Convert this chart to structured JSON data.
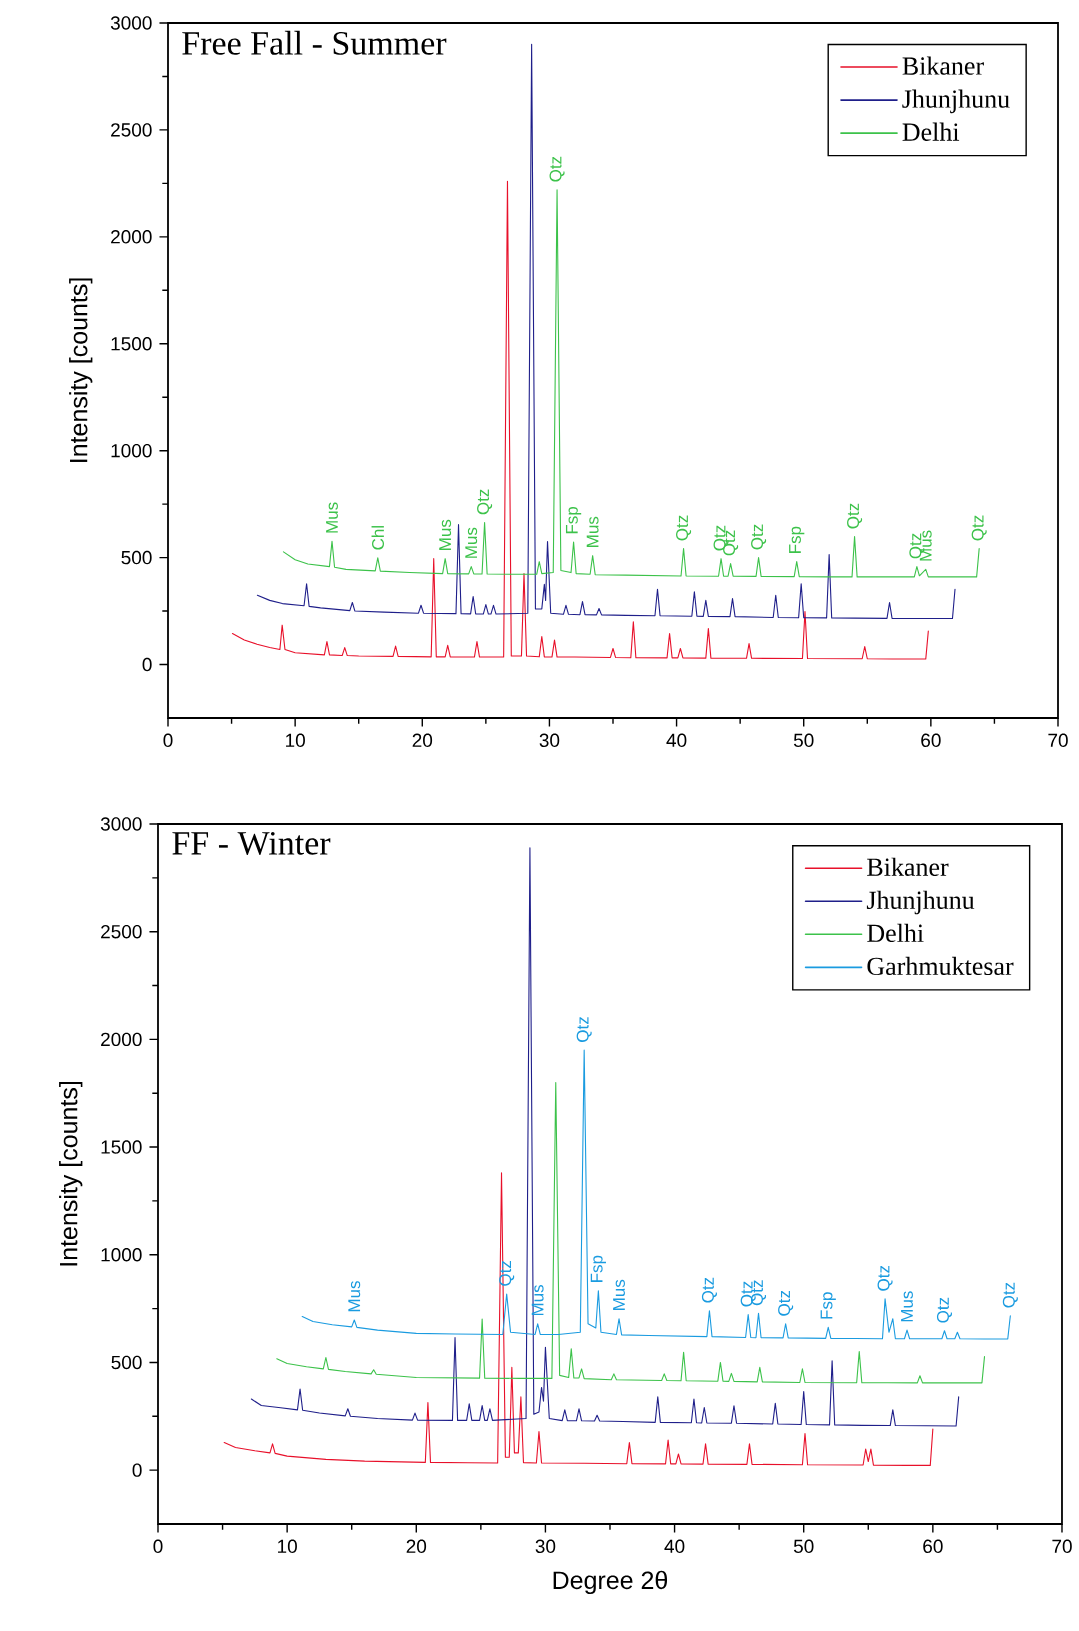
{
  "chart_data": [
    {
      "type": "line",
      "title": "Free Fall - Summer",
      "ylabel": "Intensity [counts]",
      "xlim": [
        0,
        70
      ],
      "xticks": [
        0,
        10,
        20,
        30,
        40,
        50,
        60,
        70
      ],
      "ylim": [
        -250,
        3000
      ],
      "yticks": [
        0,
        500,
        1000,
        1500,
        2000,
        2500,
        3000
      ],
      "legend": "top right",
      "series": [
        {
          "name": "Bikaner",
          "color": "#e8102a",
          "x": [
            5.07,
            6,
            7,
            8,
            8.8,
            8.98,
            9.2,
            10,
            12.3,
            12.5,
            12.7,
            13.7,
            13.9,
            14.1,
            15,
            17.7,
            17.9,
            18.1,
            20.7,
            20.9,
            21.1,
            21.8,
            22.0,
            22.2,
            24.1,
            24.3,
            24.5,
            26.4,
            26.7,
            27.0,
            27.8,
            28.0,
            28.2,
            29.2,
            29.4,
            29.6,
            30.2,
            30.4,
            30.6,
            32,
            34.8,
            35.0,
            35.2,
            36.4,
            36.6,
            36.8,
            39.25,
            39.45,
            39.65,
            40.1,
            40.3,
            40.5,
            42.3,
            42.5,
            42.7,
            45.5,
            45.7,
            45.9,
            49.9,
            50.1,
            50.3,
            54.6,
            54.8,
            55.0,
            57,
            59.6,
            59.8
          ],
          "values": [
            145,
            115,
            95,
            80,
            70,
            184,
            70,
            55,
            45,
            107,
            45,
            42,
            79,
            42,
            40,
            38,
            86,
            38,
            36,
            495,
            36,
            36,
            90,
            36,
            35,
            107,
            35,
            35,
            2260,
            40,
            40,
            425,
            40,
            36,
            131,
            36,
            35,
            114,
            35,
            35,
            33,
            75,
            33,
            32,
            200,
            32,
            31,
            145,
            31,
            31,
            75,
            31,
            30,
            168,
            30,
            29,
            98,
            29,
            28,
            248,
            28,
            27,
            84,
            27,
            26,
            26,
            156
          ]
        },
        {
          "name": "Jhunjhunu",
          "color": "#1f1f8a",
          "x": [
            7.03,
            8,
            9,
            10.7,
            10.9,
            11.1,
            12,
            14.3,
            14.5,
            14.7,
            17,
            19.7,
            19.9,
            20.1,
            22.65,
            22.85,
            23.05,
            23.8,
            24.0,
            24.2,
            24.8,
            25.0,
            25.2,
            25.4,
            25.6,
            25.8,
            28.3,
            28.6,
            28.9,
            29.4,
            29.6,
            29.7,
            29.85,
            30.1,
            31.1,
            31.3,
            31.5,
            32.4,
            32.6,
            32.8,
            33.7,
            33.9,
            34.1,
            36,
            38.3,
            38.5,
            38.7,
            41.2,
            41.4,
            41.6,
            42.1,
            42.3,
            42.5,
            44.2,
            44.4,
            44.6,
            47.6,
            47.8,
            48.0,
            49.6,
            49.8,
            50.0,
            51.8,
            52.0,
            52.2,
            54,
            56.55,
            56.75,
            56.95,
            59,
            61.7,
            61.9
          ],
          "values": [
            324,
            300,
            285,
            275,
            378,
            272,
            265,
            252,
            290,
            250,
            245,
            240,
            277,
            240,
            238,
            654,
            238,
            237,
            318,
            237,
            236,
            280,
            236,
            236,
            277,
            236,
            240,
            2900,
            260,
            260,
            375,
            300,
            575,
            240,
            235,
            277,
            235,
            233,
            294,
            233,
            232,
            262,
            232,
            230,
            228,
            352,
            228,
            226,
            340,
            226,
            225,
            300,
            225,
            224,
            308,
            224,
            220,
            324,
            220,
            219,
            378,
            219,
            218,
            514,
            218,
            217,
            216,
            290,
            216,
            215,
            215,
            352
          ]
        },
        {
          "name": "Delhi",
          "color": "#3cc24a",
          "x": [
            9.08,
            10,
            11,
            12.7,
            12.9,
            13.1,
            14,
            16.3,
            16.5,
            16.7,
            19,
            21.6,
            21.8,
            22.0,
            23.65,
            23.85,
            24.05,
            24.7,
            24.9,
            25.1,
            27,
            29.0,
            29.2,
            29.4,
            30.3,
            30.6,
            30.9,
            31.7,
            31.9,
            32.1,
            33.2,
            33.4,
            33.6,
            36,
            40.35,
            40.55,
            40.75,
            43.3,
            43.5,
            43.7,
            44.05,
            44.25,
            44.45,
            46.25,
            46.45,
            46.65,
            49.25,
            49.45,
            49.65,
            52,
            53.8,
            54.0,
            54.2,
            56,
            58.7,
            58.9,
            59.1,
            59.6,
            59.8,
            61,
            63.6,
            63.8
          ],
          "values": [
            527,
            490,
            470,
            458,
            576,
            455,
            445,
            438,
            499,
            437,
            430,
            425,
            495,
            425,
            424,
            458,
            424,
            423,
            664,
            423,
            422,
            422,
            481,
            425,
            430,
            2220,
            440,
            430,
            573,
            425,
            422,
            509,
            420,
            418,
            414,
            542,
            414,
            413,
            495,
            413,
            413,
            472,
            413,
            412,
            500,
            412,
            411,
            481,
            411,
            410,
            410,
            598,
            410,
            410,
            410,
            458,
            415,
            445,
            410,
            410,
            410,
            542
          ]
        }
      ],
      "annotations": [
        {
          "text": "Mus",
          "x": 12.9,
          "y": 576
        },
        {
          "text": "Chl",
          "x": 16.5,
          "y": 499
        },
        {
          "text": "Mus",
          "x": 21.8,
          "y": 495
        },
        {
          "text": "Mus",
          "x": 23.85,
          "y": 458
        },
        {
          "text": "Qtz",
          "x": 24.9,
          "y": 664
        },
        {
          "text": "Qtz",
          "x": 30.6,
          "y": 2220
        },
        {
          "text": "Fsp",
          "x": 31.9,
          "y": 573
        },
        {
          "text": "Mus",
          "x": 33.4,
          "y": 509
        },
        {
          "text": "Qtz",
          "x": 40.55,
          "y": 542
        },
        {
          "text": "Qtz",
          "x": 43.5,
          "y": 495
        },
        {
          "text": "Qtz",
          "x": 44.25,
          "y": 472
        },
        {
          "text": "Qtz",
          "x": 46.45,
          "y": 500
        },
        {
          "text": "Fsp",
          "x": 49.45,
          "y": 481
        },
        {
          "text": "Qtz",
          "x": 54.0,
          "y": 598
        },
        {
          "text": "Qtz",
          "x": 58.9,
          "y": 458
        },
        {
          "text": "Mus",
          "x": 59.6,
          "y": 445
        },
        {
          "text": "Qtz",
          "x": 63.8,
          "y": 542
        }
      ]
    },
    {
      "type": "line",
      "title": "FF - Winter",
      "xlabel": "Degree 2θ",
      "ylabel": "Intensity [counts]",
      "xlim": [
        0,
        70
      ],
      "xticks": [
        0,
        10,
        20,
        30,
        40,
        50,
        60,
        70
      ],
      "ylim": [
        -250,
        3000
      ],
      "yticks": [
        0,
        500,
        1000,
        1500,
        2000,
        2500,
        3000
      ],
      "legend": "top right",
      "series": [
        {
          "name": "Bikaner",
          "color": "#e8102a",
          "x": [
            5.13,
            6,
            7.5,
            8.67,
            8.87,
            9.07,
            10,
            13,
            16,
            20.7,
            20.9,
            21.1,
            24,
            26.3,
            26.6,
            26.9,
            27.2,
            27.4,
            27.6,
            27.9,
            28.1,
            28.3,
            29.3,
            29.5,
            29.7,
            33,
            36.3,
            36.5,
            36.7,
            39.3,
            39.5,
            39.7,
            40.1,
            40.3,
            40.5,
            42.2,
            42.4,
            42.6,
            45.6,
            45.8,
            46.0,
            49.9,
            50.1,
            50.3,
            54.6,
            54.8,
            55.0,
            55.2,
            55.4,
            58,
            59.8,
            60.0
          ],
          "values": [
            128,
            105,
            90,
            80,
            122,
            78,
            65,
            50,
            42,
            36,
            314,
            36,
            34,
            33,
            1380,
            60,
            60,
            477,
            80,
            80,
            340,
            35,
            33,
            179,
            33,
            32,
            30,
            128,
            30,
            29,
            140,
            29,
            29,
            75,
            29,
            28,
            122,
            28,
            27,
            122,
            27,
            25,
            170,
            25,
            24,
            98,
            40,
            98,
            23,
            22,
            22,
            191
          ]
        },
        {
          "name": "Jhunjhunu",
          "color": "#1f1f8a",
          "x": [
            7.23,
            8,
            9.5,
            10.8,
            11.0,
            11.2,
            12.5,
            14.5,
            14.7,
            14.9,
            17,
            19.7,
            19.9,
            20.1,
            22.8,
            23.0,
            23.2,
            23.9,
            24.1,
            24.3,
            24.9,
            25.1,
            25.3,
            25.5,
            25.7,
            25.9,
            28.5,
            28.8,
            29.1,
            29.5,
            29.7,
            29.85,
            30.0,
            30.3,
            31.3,
            31.5,
            31.7,
            32.4,
            32.6,
            32.8,
            33.8,
            34.0,
            34.2,
            36,
            38.5,
            38.7,
            38.9,
            41.3,
            41.5,
            41.7,
            42.1,
            42.3,
            42.5,
            44.4,
            44.6,
            44.8,
            47.6,
            47.8,
            48.0,
            49.8,
            50.0,
            50.2,
            52.0,
            52.2,
            52.4,
            54.5,
            56.7,
            56.9,
            57.1,
            59.5,
            61.8,
            62.0
          ],
          "values": [
            330,
            300,
            290,
            280,
            377,
            278,
            265,
            252,
            285,
            250,
            240,
            232,
            265,
            232,
            231,
            616,
            231,
            231,
            308,
            231,
            231,
            300,
            231,
            231,
            285,
            231,
            240,
            2890,
            260,
            270,
            384,
            320,
            570,
            240,
            230,
            280,
            230,
            229,
            285,
            229,
            228,
            255,
            228,
            226,
            222,
            340,
            222,
            220,
            330,
            220,
            219,
            291,
            219,
            218,
            299,
            218,
            214,
            310,
            214,
            212,
            365,
            212,
            210,
            508,
            210,
            208,
            207,
            280,
            207,
            206,
            205,
            340
          ]
        },
        {
          "name": "Delhi",
          "color": "#3cc24a",
          "x": [
            9.2,
            10,
            11.5,
            12.8,
            13.0,
            13.2,
            14.5,
            16.5,
            16.7,
            16.9,
            20,
            24.9,
            25.1,
            25.3,
            28,
            30.5,
            30.8,
            31.1,
            31.8,
            32.0,
            32.2,
            32.6,
            32.8,
            33.0,
            35.1,
            35.3,
            35.5,
            39.0,
            39.2,
            39.4,
            40.5,
            40.7,
            40.9,
            43.35,
            43.55,
            43.75,
            44.2,
            44.4,
            44.6,
            46.4,
            46.6,
            46.8,
            49.7,
            49.9,
            50.1,
            54.1,
            54.3,
            54.5,
            56.5,
            58.8,
            59.0,
            59.2,
            61.5,
            63.8,
            64.0
          ],
          "values": [
            517,
            495,
            480,
            470,
            523,
            468,
            458,
            447,
            466,
            445,
            430,
            427,
            702,
            427,
            426,
            426,
            1800,
            440,
            430,
            563,
            428,
            428,
            470,
            425,
            420,
            447,
            420,
            416,
            447,
            416,
            415,
            547,
            415,
            413,
            500,
            413,
            412,
            449,
            412,
            410,
            477,
            410,
            407,
            470,
            407,
            406,
            551,
            406,
            406,
            405,
            438,
            405,
            405,
            405,
            527
          ]
        },
        {
          "name": "Garhmuktesar",
          "color": "#1a9be0",
          "x": [
            11.17,
            12,
            13.5,
            15.0,
            15.2,
            15.4,
            17,
            20,
            23,
            26.7,
            27.0,
            27.3,
            29.2,
            29.4,
            29.6,
            31,
            32.7,
            33.0,
            33.3,
            33.9,
            34.1,
            34.3,
            35.5,
            35.7,
            35.9,
            38,
            42.5,
            42.7,
            42.9,
            45.5,
            45.7,
            45.9,
            46.3,
            46.5,
            46.7,
            48.4,
            48.6,
            48.8,
            51.7,
            51.9,
            52.1,
            54,
            56.1,
            56.3,
            56.6,
            56.9,
            57.1,
            57.8,
            58.0,
            58.2,
            59,
            60.7,
            60.9,
            61.1,
            61.7,
            61.9,
            62.1,
            64,
            65.8,
            66.0
          ],
          "values": [
            713,
            690,
            675,
            665,
            697,
            663,
            650,
            635,
            632,
            630,
            818,
            640,
            630,
            679,
            630,
            630,
            640,
            1950,
            680,
            660,
            833,
            640,
            630,
            703,
            628,
            625,
            620,
            740,
            620,
            616,
            722,
            616,
            615,
            728,
            615,
            614,
            679,
            614,
            612,
            663,
            612,
            611,
            610,
            795,
            640,
            703,
            610,
            610,
            650,
            610,
            610,
            610,
            647,
            610,
            610,
            640,
            610,
            609,
            609,
            717
          ]
        }
      ],
      "annotations": [
        {
          "text": "Mus",
          "x": 15.2,
          "y": 697
        },
        {
          "text": "Qtz",
          "x": 27.0,
          "y": 818
        },
        {
          "text": "Mus",
          "x": 29.4,
          "y": 679
        },
        {
          "text": "Qtz",
          "x": 33.0,
          "y": 1950
        },
        {
          "text": "Fsp",
          "x": 34.1,
          "y": 833
        },
        {
          "text": "Mus",
          "x": 35.7,
          "y": 703
        },
        {
          "text": "Qtz",
          "x": 42.7,
          "y": 740
        },
        {
          "text": "Qtz",
          "x": 45.7,
          "y": 722
        },
        {
          "text": "Qtz",
          "x": 46.5,
          "y": 728
        },
        {
          "text": "Qtz",
          "x": 48.6,
          "y": 679
        },
        {
          "text": "Fsp",
          "x": 51.9,
          "y": 663
        },
        {
          "text": "Qtz",
          "x": 56.3,
          "y": 795
        },
        {
          "text": "Mus",
          "x": 58.0,
          "y": 650
        },
        {
          "text": "Qtz",
          "x": 60.9,
          "y": 647
        },
        {
          "text": "Qtz",
          "x": 66.0,
          "y": 717
        }
      ]
    }
  ]
}
